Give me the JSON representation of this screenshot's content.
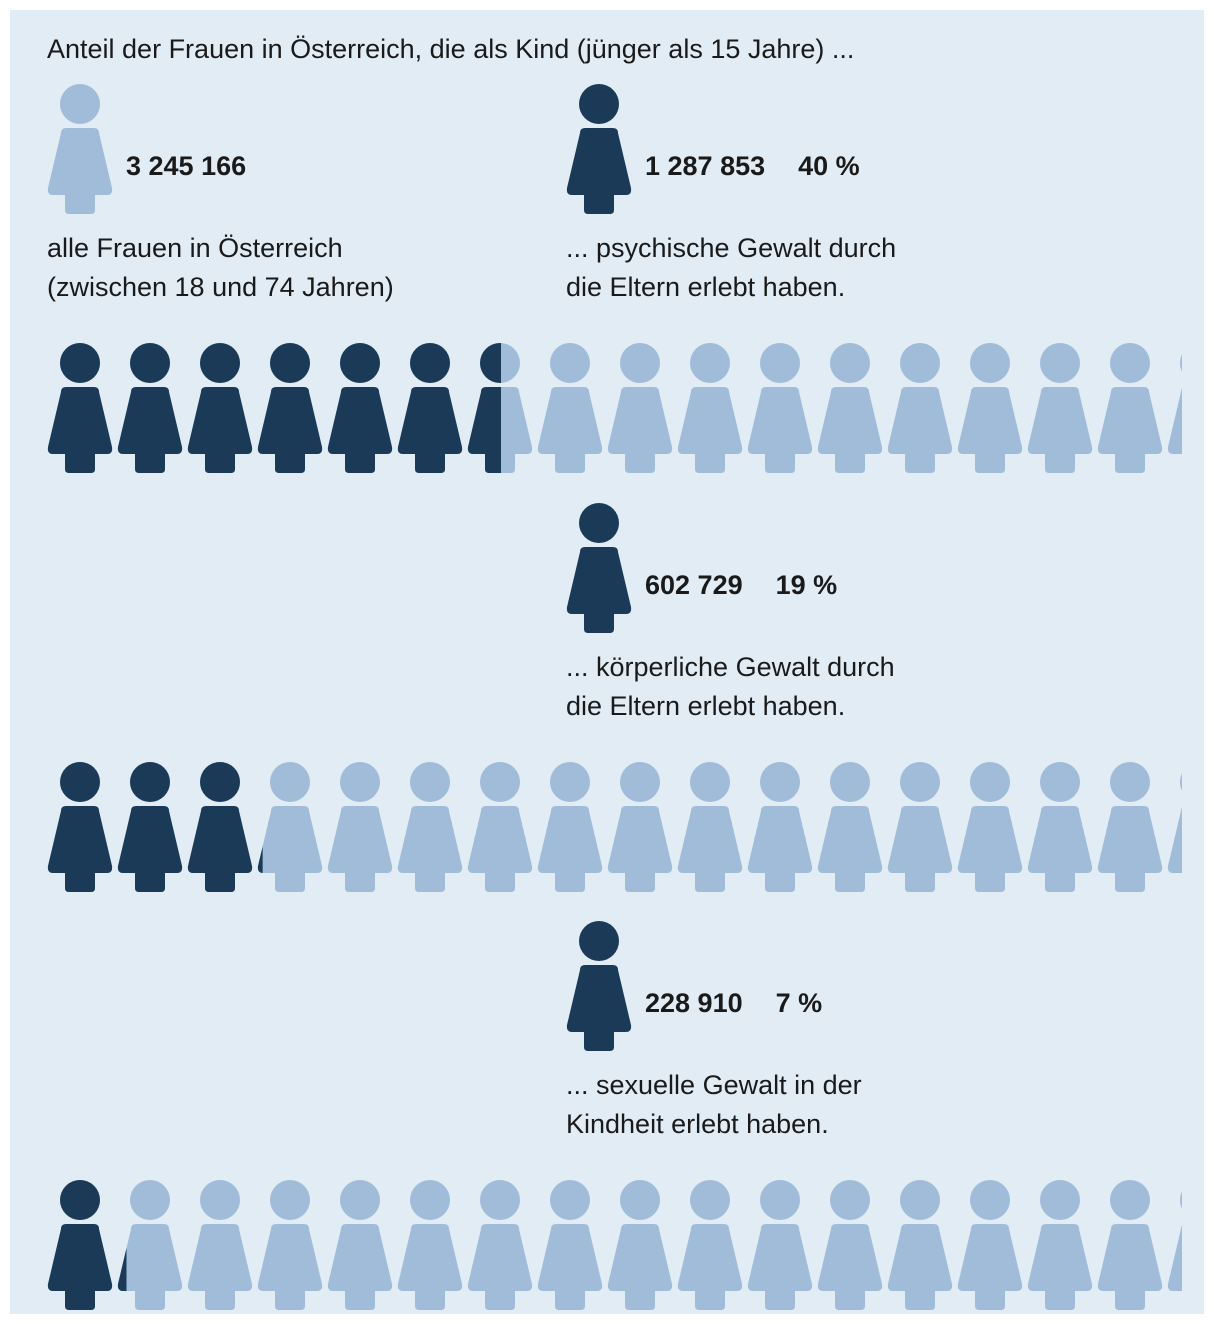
{
  "chart_data": {
    "type": "pictogram",
    "title": "Anteil der Frauen in Österreich, die als Kind (jünger als 15 Jahre) ...",
    "total": {
      "value": 3245166,
      "value_label": "3 245 166",
      "label": [
        "alle Frauen in Österreich",
        "(zwischen 18 und 74 Jahren)"
      ],
      "color": "#a0bcd9"
    },
    "categories": [
      [
        "... psychische Gewalt durch",
        "die Eltern erlebt haben."
      ],
      [
        "... körperliche Gewalt durch",
        "die Eltern erlebt haben."
      ],
      [
        "... sexuelle Gewalt in der",
        "Kindheit erlebt haben."
      ]
    ],
    "counts": [
      1287853,
      602729,
      228910
    ],
    "count_labels": [
      "1 287 853",
      "602 729",
      "228 910"
    ],
    "values": [
      40,
      19,
      7
    ],
    "value_labels": [
      "40 %",
      "19 %",
      "7 %"
    ],
    "ylim": [
      0,
      100
    ],
    "color": "#1b3a57",
    "rest_color": "#a0bcd9"
  }
}
